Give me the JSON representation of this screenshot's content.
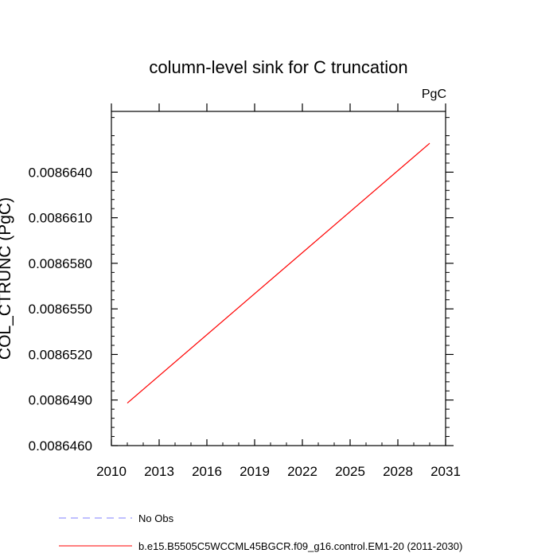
{
  "chart_data": {
    "type": "line",
    "title": "column-level sink for C truncation",
    "units": "PgC",
    "ylabel": "COL_CTRUNC  (PgC)",
    "xlabel": "",
    "xlim": [
      2010,
      2031
    ],
    "ylim": [
      0.008646,
      0.008668
    ],
    "x_ticks": [
      2010,
      2013,
      2016,
      2019,
      2022,
      2025,
      2028,
      2031
    ],
    "x_tick_labels": [
      "2010",
      "2013",
      "2016",
      "2019",
      "2022",
      "2025",
      "2028",
      "2031"
    ],
    "y_ticks": [
      0.008646,
      0.008649,
      0.008652,
      0.008655,
      0.008658,
      0.008661,
      0.008664
    ],
    "y_tick_labels": [
      "0.0086460",
      "0.0086490",
      "0.0086520",
      "0.0086550",
      "0.0086580",
      "0.0086610",
      "0.0086640"
    ],
    "grid": false,
    "legend_position": "bottom-left, below plot",
    "series": [
      {
        "name": "b.e15.B5505C5WCCML45BGCR.f09_g16.control.EM1-20 (2011-2030)",
        "color": "#ff0000",
        "style": "solid",
        "x": [
          2011,
          2030
        ],
        "y": [
          0.0086488,
          0.0086659
        ]
      }
    ],
    "legend": [
      {
        "label": "No Obs",
        "color": "#8080ff",
        "style": "dashed"
      },
      {
        "label": "b.e15.B5505C5WCCML45BGCR.f09_g16.control.EM1-20 (2011-2030)",
        "color": "#ff0000",
        "style": "solid"
      }
    ]
  }
}
